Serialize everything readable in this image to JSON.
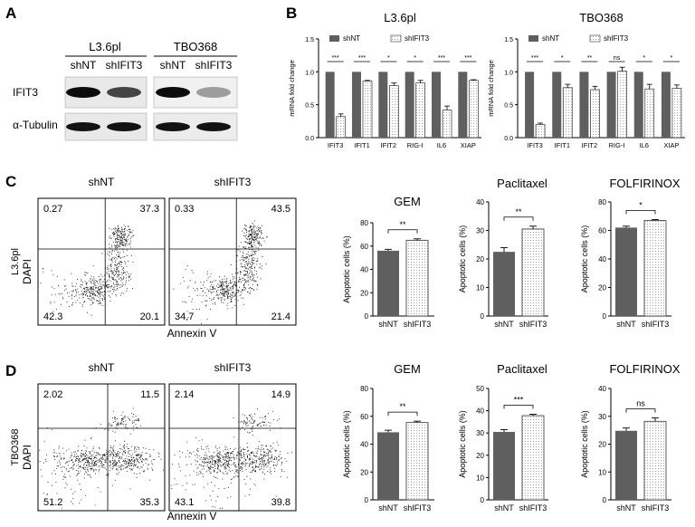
{
  "panel_letters": {
    "A": "A",
    "B": "B",
    "C": "C",
    "D": "D"
  },
  "western_blot": {
    "cell_lines": [
      "L3.6pl",
      "TBO368"
    ],
    "lanes": [
      "shNT",
      "shIFIT3"
    ],
    "proteins": [
      "IFIT3",
      "α-Tubulin"
    ],
    "ifit3_band_levels": {
      "L3.6pl": [
        1.0,
        0.7
      ],
      "TBO368": [
        1.0,
        0.25
      ]
    }
  },
  "flow": {
    "columns": [
      "shNT",
      "shIFIT3"
    ],
    "x_label": "Annexin V",
    "y_label": "DAPI",
    "rows": [
      {
        "cell_line": "L3.6pl",
        "quadrants": [
          [
            "0.27",
            "37.3",
            "42.3",
            "20.1"
          ],
          [
            "0.33",
            "43.5",
            "34.7",
            "21.4"
          ]
        ]
      },
      {
        "cell_line": "TBO368",
        "quadrants": [
          [
            "2.02",
            "11.5",
            "51.2",
            "35.3"
          ],
          [
            "2.14",
            "14.9",
            "43.1",
            "39.8"
          ]
        ]
      }
    ]
  },
  "colors": {
    "shNT": "#5f5f5f",
    "shIFIT3": "#ffffff",
    "dot": "#111111"
  },
  "chart_data": [
    {
      "type": "bar",
      "title": "L3.6pl",
      "ylabel": "mRNA fold change",
      "ylim": [
        0,
        1.5
      ],
      "yticks": [
        "0.0",
        "0.5",
        "1.0",
        "1.5"
      ],
      "categories": [
        "IFIT3",
        "IFIT1",
        "IFIT2",
        "RIG-I",
        "IL6",
        "XIAP"
      ],
      "series": [
        {
          "name": "shNT",
          "values": [
            1,
            1,
            1,
            1,
            1,
            1
          ]
        },
        {
          "name": "shIFIT3",
          "values": [
            0.32,
            0.86,
            0.79,
            0.83,
            0.42,
            0.87
          ]
        }
      ],
      "errors": [
        0.04,
        0.01,
        0.04,
        0.04,
        0.06,
        0.01
      ],
      "significance": [
        "***",
        "***",
        "*",
        "*",
        "***",
        "***"
      ],
      "legend": "top"
    },
    {
      "type": "bar",
      "title": "TBO368",
      "ylabel": "mRNA fold change",
      "ylim": [
        0,
        1.5
      ],
      "yticks": [
        "0.0",
        "0.5",
        "1.0",
        "1.5"
      ],
      "categories": [
        "IFIT3",
        "IFIT1",
        "IFIT2",
        "RIG-I",
        "IL6",
        "XIAP"
      ],
      "series": [
        {
          "name": "shNT",
          "values": [
            1,
            1,
            1,
            1,
            1,
            1
          ]
        },
        {
          "name": "shIFIT3",
          "values": [
            0.2,
            0.76,
            0.73,
            1.01,
            0.74,
            0.75
          ]
        }
      ],
      "errors": [
        0.02,
        0.05,
        0.05,
        0.06,
        0.07,
        0.05
      ],
      "significance": [
        "***",
        "*",
        "**",
        "ns",
        "*",
        "*"
      ],
      "legend": "top"
    },
    {
      "type": "bar",
      "title": "GEM",
      "ylabel": "Apoptotic cells (%)",
      "ylim": [
        0,
        80
      ],
      "yticks": [
        "0",
        "20",
        "40",
        "60",
        "80"
      ],
      "categories": [
        "shNT",
        "shIFIT3"
      ],
      "values": [
        56,
        65
      ],
      "errors": [
        1.2,
        1.2
      ],
      "significance": "**"
    },
    {
      "type": "bar",
      "title": "Paclitaxel",
      "ylabel": "Apoptotic cells (%)",
      "ylim": [
        0,
        40
      ],
      "yticks": [
        "0",
        "10",
        "20",
        "30",
        "40"
      ],
      "categories": [
        "shNT",
        "shIFIT3"
      ],
      "values": [
        22.5,
        30.5
      ],
      "errors": [
        1.5,
        1.0
      ],
      "significance": "**"
    },
    {
      "type": "bar",
      "title": "FOLFIRINOX",
      "ylabel": "Apoptotic cells (%)",
      "ylim": [
        0,
        80
      ],
      "yticks": [
        "0",
        "20",
        "40",
        "60",
        "80"
      ],
      "categories": [
        "shNT",
        "shIFIT3"
      ],
      "values": [
        62,
        67
      ],
      "errors": [
        1.0,
        0.6
      ],
      "significance": "*"
    },
    {
      "type": "bar",
      "title": "GEM",
      "ylabel": "Apoptotic cells (%)",
      "ylim": [
        0,
        80
      ],
      "yticks": [
        "0",
        "20",
        "40",
        "60",
        "80"
      ],
      "categories": [
        "shNT",
        "shIFIT3"
      ],
      "values": [
        48.5,
        55.5
      ],
      "errors": [
        1.5,
        1.0
      ],
      "significance": "**"
    },
    {
      "type": "bar",
      "title": "Paclitaxel",
      "ylabel": "Apoptotic cells (%)",
      "ylim": [
        0,
        50
      ],
      "yticks": [
        "0",
        "10",
        "20",
        "30",
        "40",
        "50"
      ],
      "categories": [
        "shNT",
        "shIFIT3"
      ],
      "values": [
        30.5,
        37.8
      ],
      "errors": [
        1.0,
        0.6
      ],
      "significance": "***"
    },
    {
      "type": "bar",
      "title": "FOLFIRINOX",
      "ylabel": "Apoptotic cells (%)",
      "ylim": [
        0,
        40
      ],
      "yticks": [
        "0",
        "10",
        "20",
        "30",
        "40"
      ],
      "categories": [
        "shNT",
        "shIFIT3"
      ],
      "values": [
        24.8,
        28.2
      ],
      "errors": [
        1.0,
        1.2
      ],
      "significance": "ns"
    }
  ]
}
